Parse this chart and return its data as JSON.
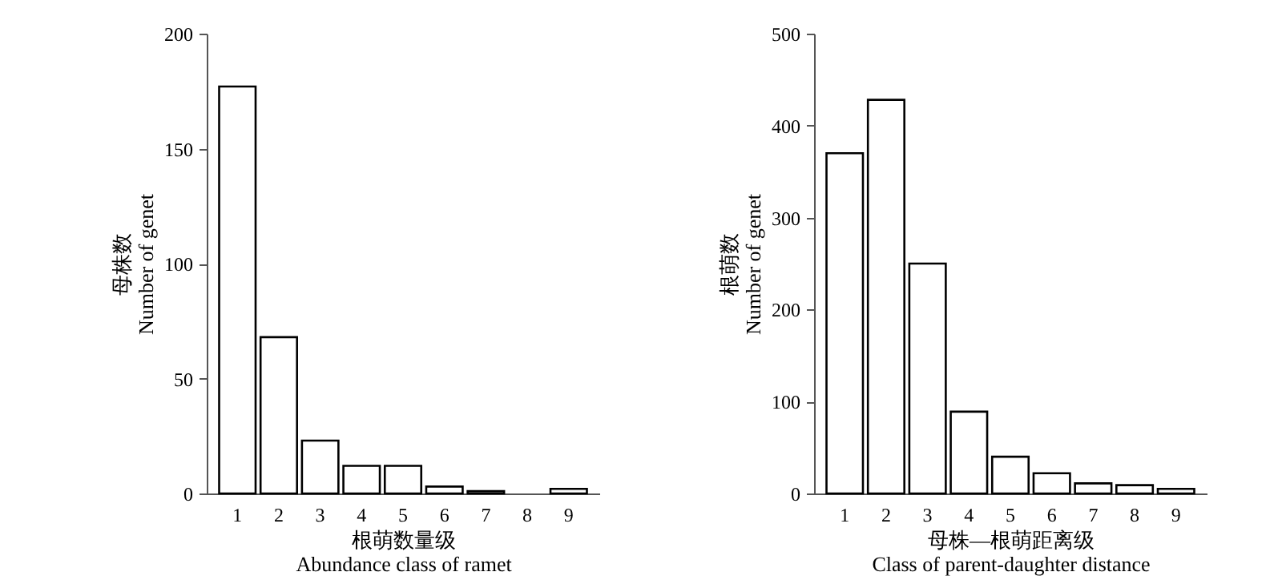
{
  "chart_data": [
    {
      "type": "bar",
      "categories": [
        "1",
        "2",
        "3",
        "4",
        "5",
        "6",
        "7",
        "8",
        "9"
      ],
      "values": [
        177,
        68,
        23,
        12,
        12,
        3,
        1,
        0,
        2
      ],
      "color": "#ffffff",
      "xlabel": "根萌数量级\nAbundance class of ramet",
      "ylabel": "母株数\nNumber of genet",
      "ylim": [
        0,
        200
      ],
      "yticks": [
        0,
        50,
        100,
        150,
        200
      ],
      "grid": false
    },
    {
      "type": "bar",
      "categories": [
        "1",
        "2",
        "3",
        "4",
        "5",
        "6",
        "7",
        "8",
        "9"
      ],
      "values": [
        370,
        428,
        250,
        89,
        40,
        22,
        11,
        9,
        5
      ],
      "color": "#ffffff",
      "xlabel": "母株—根萌距离级\nClass of parent-daughter distance",
      "ylabel": "根萌数\nNumber of genet",
      "ylim": [
        0,
        500
      ],
      "yticks": [
        0,
        100,
        200,
        300,
        400,
        500
      ],
      "grid": false
    }
  ]
}
